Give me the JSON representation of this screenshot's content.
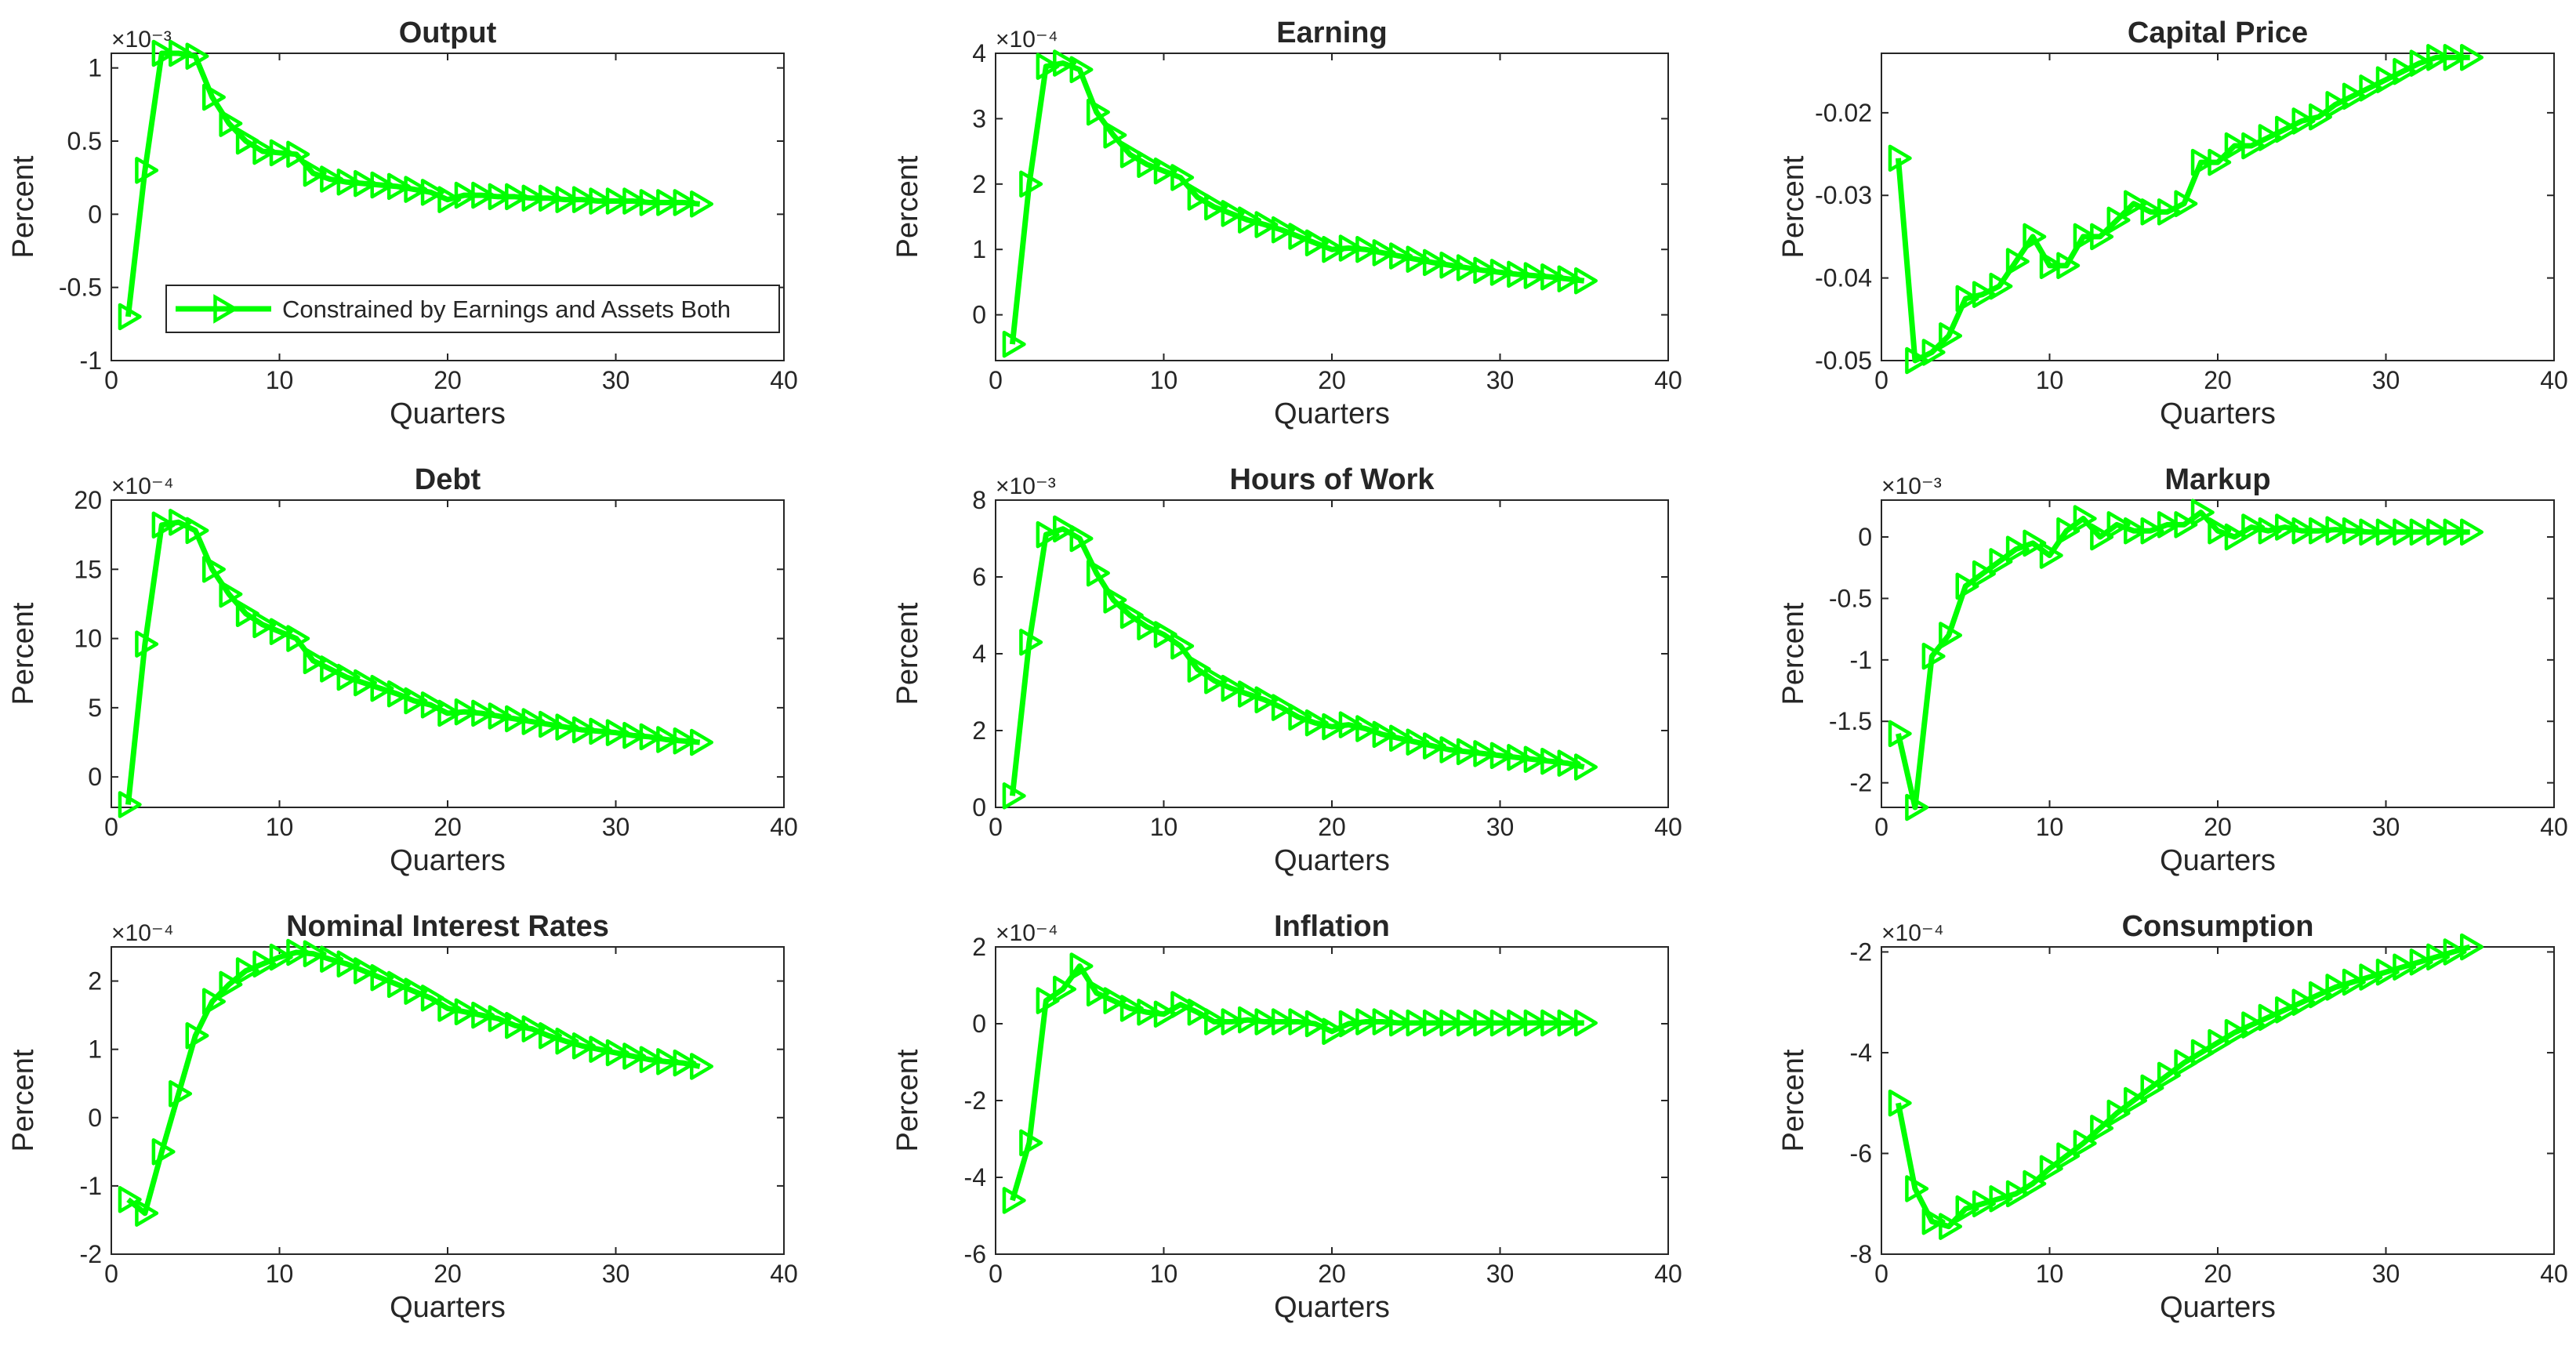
{
  "figure": {
    "ylabel": "Percent",
    "xlabel": "Quarters",
    "legend_label": "Constrained by Earnings and Assets Both",
    "line_color": "#00ff00",
    "marker": "triangle-right"
  },
  "chart_data": [
    {
      "type": "line",
      "title": "Output",
      "xlabel": "Quarters",
      "ylabel": "Percent",
      "exponent": "×10⁻³",
      "xlim": [
        0,
        40
      ],
      "ylim": [
        -1,
        1.1
      ],
      "xticks": [
        0,
        10,
        20,
        30,
        40
      ],
      "yticks": [
        -1,
        -0.5,
        0,
        0.5,
        1
      ],
      "yticklabels": [
        "-1",
        "-0.5",
        "0",
        "0.5",
        "1"
      ],
      "legend": {
        "position": "bottom-left",
        "entries": [
          "Constrained by Earnings and Assets Both"
        ]
      },
      "series": [
        {
          "name": "Constrained by Earnings and Assets Both",
          "x": [
            1,
            2,
            3,
            4,
            5,
            6,
            7,
            8,
            9,
            10,
            11,
            12,
            13,
            14,
            15,
            16,
            17,
            18,
            19,
            20,
            21,
            22,
            23,
            24,
            25,
            26,
            27,
            28,
            29,
            30,
            31,
            32,
            33,
            34,
            35
          ],
          "values": [
            -0.7,
            0.3,
            1.1,
            1.1,
            1.08,
            0.8,
            0.62,
            0.5,
            0.43,
            0.42,
            0.41,
            0.28,
            0.24,
            0.22,
            0.21,
            0.2,
            0.19,
            0.17,
            0.15,
            0.1,
            0.13,
            0.13,
            0.12,
            0.12,
            0.11,
            0.11,
            0.1,
            0.1,
            0.09,
            0.09,
            0.09,
            0.08,
            0.08,
            0.08,
            0.07
          ]
        }
      ]
    },
    {
      "type": "line",
      "title": "Earning",
      "xlabel": "Quarters",
      "ylabel": "Percent",
      "exponent": "×10⁻⁴",
      "xlim": [
        0,
        40
      ],
      "ylim": [
        -0.7,
        4
      ],
      "xticks": [
        0,
        10,
        20,
        30,
        40
      ],
      "yticks": [
        0,
        1,
        2,
        3,
        4
      ],
      "yticklabels": [
        "0",
        "1",
        "2",
        "3",
        "4"
      ],
      "series": [
        {
          "name": "Constrained by Earnings and Assets Both",
          "x": [
            1,
            2,
            3,
            4,
            5,
            6,
            7,
            8,
            9,
            10,
            11,
            12,
            13,
            14,
            15,
            16,
            17,
            18,
            19,
            20,
            21,
            22,
            23,
            24,
            25,
            26,
            27,
            28,
            29,
            30,
            31,
            32,
            33,
            34,
            35
          ],
          "values": [
            -0.45,
            2.0,
            3.8,
            3.85,
            3.75,
            3.1,
            2.75,
            2.45,
            2.3,
            2.2,
            2.1,
            1.8,
            1.65,
            1.55,
            1.45,
            1.38,
            1.3,
            1.2,
            1.1,
            1.0,
            1.02,
            1.0,
            0.95,
            0.9,
            0.85,
            0.8,
            0.76,
            0.72,
            0.68,
            0.65,
            0.62,
            0.6,
            0.58,
            0.55,
            0.52
          ]
        }
      ]
    },
    {
      "type": "line",
      "title": "Capital Price",
      "xlabel": "Quarters",
      "ylabel": "Percent",
      "exponent": "",
      "xlim": [
        0,
        40
      ],
      "ylim": [
        -0.05,
        -0.0128
      ],
      "xticks": [
        0,
        10,
        20,
        30,
        40
      ],
      "yticks": [
        -0.05,
        -0.04,
        -0.03,
        -0.02
      ],
      "yticklabels": [
        "-0.05",
        "-0.04",
        "-0.03",
        "-0.02"
      ],
      "series": [
        {
          "name": "Constrained by Earnings and Assets Both",
          "x": [
            1,
            2,
            3,
            4,
            5,
            6,
            7,
            8,
            9,
            10,
            11,
            12,
            13,
            14,
            15,
            16,
            17,
            18,
            19,
            20,
            21,
            22,
            23,
            24,
            25,
            26,
            27,
            28,
            29,
            30,
            31,
            32,
            33,
            34,
            35
          ],
          "values": [
            -0.0255,
            -0.05,
            -0.049,
            -0.047,
            -0.0425,
            -0.042,
            -0.041,
            -0.038,
            -0.035,
            -0.0385,
            -0.0385,
            -0.035,
            -0.035,
            -0.033,
            -0.031,
            -0.032,
            -0.032,
            -0.031,
            -0.026,
            -0.026,
            -0.024,
            -0.024,
            -0.023,
            -0.022,
            -0.021,
            -0.0205,
            -0.019,
            -0.018,
            -0.017,
            -0.016,
            -0.015,
            -0.014,
            -0.0133,
            -0.0133,
            -0.0133
          ]
        }
      ]
    },
    {
      "type": "line",
      "title": "Debt",
      "xlabel": "Quarters",
      "ylabel": "Percent",
      "exponent": "×10⁻⁴",
      "xlim": [
        0,
        40
      ],
      "ylim": [
        -2.2,
        20
      ],
      "xticks": [
        0,
        10,
        20,
        30,
        40
      ],
      "yticks": [
        0,
        5,
        10,
        15,
        20
      ],
      "yticklabels": [
        "0",
        "5",
        "10",
        "15",
        "20"
      ],
      "series": [
        {
          "name": "Constrained by Earnings and Assets Both",
          "x": [
            1,
            2,
            3,
            4,
            5,
            6,
            7,
            8,
            9,
            10,
            11,
            12,
            13,
            14,
            15,
            16,
            17,
            18,
            19,
            20,
            21,
            22,
            23,
            24,
            25,
            26,
            27,
            28,
            29,
            30,
            31,
            32,
            33,
            34,
            35
          ],
          "values": [
            -2.0,
            9.6,
            18.2,
            18.4,
            17.8,
            15.0,
            13.2,
            11.8,
            11.0,
            10.5,
            10.0,
            8.4,
            7.8,
            7.2,
            6.8,
            6.4,
            6.0,
            5.5,
            5.2,
            4.6,
            4.7,
            4.6,
            4.4,
            4.2,
            4.0,
            3.8,
            3.6,
            3.4,
            3.3,
            3.2,
            3.0,
            2.9,
            2.7,
            2.6,
            2.5
          ]
        }
      ]
    },
    {
      "type": "line",
      "title": "Hours of Work",
      "xlabel": "Quarters",
      "ylabel": "Percent",
      "exponent": "×10⁻³",
      "xlim": [
        0,
        40
      ],
      "ylim": [
        0,
        8
      ],
      "xticks": [
        0,
        10,
        20,
        30,
        40
      ],
      "yticks": [
        0,
        2,
        4,
        6,
        8
      ],
      "yticklabels": [
        "0",
        "2",
        "4",
        "6",
        "8"
      ],
      "series": [
        {
          "name": "Constrained by Earnings and Assets Both",
          "x": [
            1,
            2,
            3,
            4,
            5,
            6,
            7,
            8,
            9,
            10,
            11,
            12,
            13,
            14,
            15,
            16,
            17,
            18,
            19,
            20,
            21,
            22,
            23,
            24,
            25,
            26,
            27,
            28,
            29,
            30,
            31,
            32,
            33,
            34,
            35
          ],
          "values": [
            0.3,
            4.3,
            7.1,
            7.25,
            7.0,
            6.1,
            5.4,
            5.0,
            4.7,
            4.5,
            4.2,
            3.6,
            3.3,
            3.1,
            2.95,
            2.8,
            2.6,
            2.35,
            2.2,
            2.1,
            2.15,
            2.05,
            1.9,
            1.8,
            1.7,
            1.6,
            1.5,
            1.45,
            1.4,
            1.35,
            1.3,
            1.25,
            1.2,
            1.15,
            1.05
          ]
        }
      ]
    },
    {
      "type": "line",
      "title": "Markup",
      "xlabel": "Quarters",
      "ylabel": "Percent",
      "exponent": "×10⁻³",
      "xlim": [
        0,
        40
      ],
      "ylim": [
        -2.2,
        0.3
      ],
      "xticks": [
        0,
        10,
        20,
        30,
        40
      ],
      "yticks": [
        -2,
        -1.5,
        -1,
        -0.5,
        0
      ],
      "yticklabels": [
        "-2",
        "-1.5",
        "-1",
        "-0.5",
        "0"
      ],
      "series": [
        {
          "name": "Constrained by Earnings and Assets Both",
          "x": [
            1,
            2,
            3,
            4,
            5,
            6,
            7,
            8,
            9,
            10,
            11,
            12,
            13,
            14,
            15,
            16,
            17,
            18,
            19,
            20,
            21,
            22,
            23,
            24,
            25,
            26,
            27,
            28,
            29,
            30,
            31,
            32,
            33,
            34,
            35
          ],
          "values": [
            -1.6,
            -2.2,
            -0.97,
            -0.8,
            -0.4,
            -0.3,
            -0.2,
            -0.1,
            -0.05,
            -0.15,
            0.05,
            0.15,
            0.0,
            0.1,
            0.05,
            0.05,
            0.1,
            0.1,
            0.2,
            0.05,
            0.0,
            0.08,
            0.05,
            0.08,
            0.05,
            0.05,
            0.06,
            0.05,
            0.04,
            0.04,
            0.04,
            0.04,
            0.04,
            0.04,
            0.04
          ]
        }
      ]
    },
    {
      "type": "line",
      "title": "Nominal Interest Rates",
      "xlabel": "Quarters",
      "ylabel": "Percent",
      "exponent": "×10⁻⁴",
      "xlim": [
        0,
        40
      ],
      "ylim": [
        -2,
        2.5
      ],
      "xticks": [
        0,
        10,
        20,
        30,
        40
      ],
      "yticks": [
        -2,
        -1,
        0,
        1,
        2
      ],
      "yticklabels": [
        "-2",
        "-1",
        "0",
        "1",
        "2"
      ],
      "series": [
        {
          "name": "Constrained by Earnings and Assets Both",
          "x": [
            1,
            2,
            3,
            4,
            5,
            6,
            7,
            8,
            9,
            10,
            11,
            12,
            13,
            14,
            15,
            16,
            17,
            18,
            19,
            20,
            21,
            22,
            23,
            24,
            25,
            26,
            27,
            28,
            29,
            30,
            31,
            32,
            33,
            34,
            35
          ],
          "values": [
            -1.2,
            -1.4,
            -0.5,
            0.35,
            1.2,
            1.7,
            1.95,
            2.15,
            2.25,
            2.35,
            2.42,
            2.4,
            2.32,
            2.25,
            2.15,
            2.05,
            1.95,
            1.85,
            1.75,
            1.6,
            1.55,
            1.5,
            1.45,
            1.35,
            1.3,
            1.2,
            1.12,
            1.05,
            1.0,
            0.95,
            0.9,
            0.85,
            0.82,
            0.8,
            0.75
          ]
        }
      ]
    },
    {
      "type": "line",
      "title": "Inflation",
      "xlabel": "Quarters",
      "ylabel": "Percent",
      "exponent": "×10⁻⁴",
      "xlim": [
        0,
        40
      ],
      "ylim": [
        -6,
        2
      ],
      "xticks": [
        0,
        10,
        20,
        30,
        40
      ],
      "yticks": [
        -6,
        -4,
        -2,
        0,
        2
      ],
      "yticklabels": [
        "-6",
        "-4",
        "-2",
        "0",
        "2"
      ],
      "series": [
        {
          "name": "Constrained by Earnings and Assets Both",
          "x": [
            1,
            2,
            3,
            4,
            5,
            6,
            7,
            8,
            9,
            10,
            11,
            12,
            13,
            14,
            15,
            16,
            17,
            18,
            19,
            20,
            21,
            22,
            23,
            24,
            25,
            26,
            27,
            28,
            29,
            30,
            31,
            32,
            33,
            34,
            35
          ],
          "values": [
            -4.6,
            -3.1,
            0.6,
            0.9,
            1.5,
            0.8,
            0.6,
            0.4,
            0.3,
            0.25,
            0.5,
            0.3,
            0.05,
            0.05,
            0.1,
            0.05,
            0.05,
            0.05,
            0.0,
            -0.2,
            0.0,
            0.05,
            0.05,
            0.02,
            0.02,
            0.02,
            0.02,
            0.02,
            0.02,
            0.02,
            0.02,
            0.02,
            0.02,
            0.02,
            0.02
          ]
        }
      ]
    },
    {
      "type": "line",
      "title": "Consumption",
      "xlabel": "Quarters",
      "ylabel": "Percent",
      "exponent": "×10⁻⁴",
      "xlim": [
        0,
        40
      ],
      "ylim": [
        -8,
        -1.9
      ],
      "xticks": [
        0,
        10,
        20,
        30,
        40
      ],
      "yticks": [
        -8,
        -6,
        -4,
        -2
      ],
      "yticklabels": [
        "-8",
        "-6",
        "-4",
        "-2"
      ],
      "series": [
        {
          "name": "Constrained by Earnings and Assets Both",
          "x": [
            1,
            2,
            3,
            4,
            5,
            6,
            7,
            8,
            9,
            10,
            11,
            12,
            13,
            14,
            15,
            16,
            17,
            18,
            19,
            20,
            21,
            22,
            23,
            24,
            25,
            26,
            27,
            28,
            29,
            30,
            31,
            32,
            33,
            34,
            35
          ],
          "values": [
            -5.0,
            -6.7,
            -7.35,
            -7.45,
            -7.1,
            -7.0,
            -6.9,
            -6.8,
            -6.6,
            -6.3,
            -6.05,
            -5.8,
            -5.5,
            -5.2,
            -4.95,
            -4.7,
            -4.45,
            -4.2,
            -4.0,
            -3.8,
            -3.6,
            -3.45,
            -3.3,
            -3.15,
            -3.0,
            -2.85,
            -2.7,
            -2.6,
            -2.5,
            -2.4,
            -2.3,
            -2.2,
            -2.1,
            -2.0,
            -1.9
          ]
        }
      ]
    }
  ]
}
